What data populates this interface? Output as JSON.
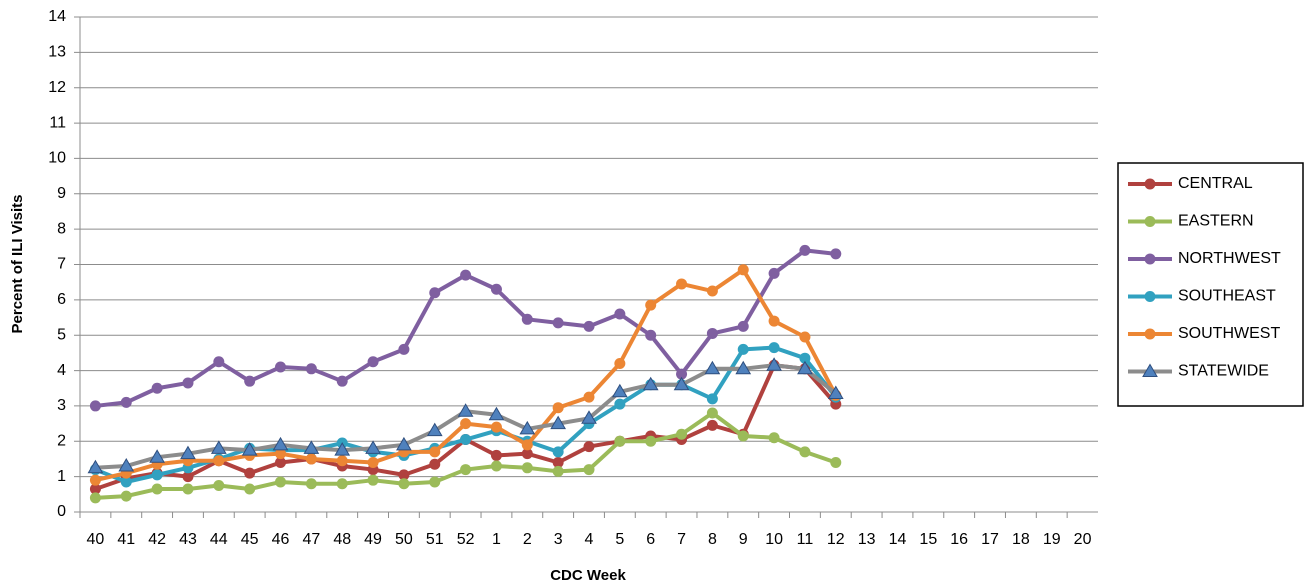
{
  "chart_data": {
    "type": "line",
    "x_label": "CDC Week",
    "y_label": "Percent of ILI Visits",
    "categories": [
      "40",
      "41",
      "42",
      "43",
      "44",
      "45",
      "46",
      "47",
      "48",
      "49",
      "50",
      "51",
      "52",
      "1",
      "2",
      "3",
      "4",
      "5",
      "6",
      "7",
      "8",
      "9",
      "10",
      "11",
      "12",
      "13",
      "14",
      "15",
      "16",
      "17",
      "18",
      "19",
      "20"
    ],
    "series": [
      {
        "name": "CENTRAL",
        "color": "#b0413e",
        "marker": "circle",
        "values": [
          0.65,
          0.95,
          1.1,
          1.0,
          1.45,
          1.1,
          1.4,
          1.5,
          1.3,
          1.2,
          1.05,
          1.35,
          2.05,
          1.6,
          1.65,
          1.4,
          1.85,
          2.0,
          2.15,
          2.05,
          2.45,
          2.2,
          4.15,
          4.05,
          3.05,
          null,
          null,
          null,
          null,
          null,
          null,
          null,
          null
        ]
      },
      {
        "name": "EASTERN",
        "color": "#9bbb59",
        "marker": "circle",
        "values": [
          0.4,
          0.45,
          0.65,
          0.65,
          0.75,
          0.65,
          0.85,
          0.8,
          0.8,
          0.9,
          0.8,
          0.85,
          1.2,
          1.3,
          1.25,
          1.15,
          1.2,
          2.0,
          2.0,
          2.2,
          2.8,
          2.15,
          2.1,
          1.7,
          1.4,
          null,
          null,
          null,
          null,
          null,
          null,
          null,
          null
        ]
      },
      {
        "name": "NORTHWEST",
        "color": "#7f5fa0",
        "marker": "circle",
        "values": [
          3.0,
          3.1,
          3.5,
          3.65,
          4.25,
          3.7,
          4.1,
          4.05,
          3.7,
          4.25,
          4.6,
          6.2,
          6.7,
          6.3,
          5.45,
          5.35,
          5.25,
          5.6,
          5.0,
          3.9,
          5.05,
          5.25,
          6.75,
          7.4,
          7.3,
          null,
          null,
          null,
          null,
          null,
          null,
          null,
          null
        ]
      },
      {
        "name": "SOUTHEAST",
        "color": "#31a1c0",
        "marker": "circle",
        "values": [
          1.2,
          0.85,
          1.05,
          1.25,
          1.5,
          1.8,
          1.75,
          1.75,
          1.95,
          1.7,
          1.6,
          1.8,
          2.05,
          2.3,
          2.0,
          1.7,
          2.5,
          3.05,
          3.6,
          3.6,
          3.2,
          4.6,
          4.65,
          4.35,
          3.25,
          null,
          null,
          null,
          null,
          null,
          null,
          null,
          null
        ]
      },
      {
        "name": "SOUTHWEST",
        "color": "#ec8634",
        "marker": "circle",
        "values": [
          0.9,
          1.1,
          1.35,
          1.45,
          1.45,
          1.6,
          1.65,
          1.5,
          1.45,
          1.4,
          1.7,
          1.7,
          2.5,
          2.4,
          1.9,
          2.95,
          3.25,
          4.2,
          5.85,
          6.45,
          6.25,
          6.85,
          5.4,
          4.95,
          3.3,
          null,
          null,
          null,
          null,
          null,
          null,
          null,
          null
        ]
      },
      {
        "name": "STATEWIDE",
        "color": "#8c8c8c",
        "marker": "triangle",
        "marker_color": "#4f81bd",
        "values": [
          1.25,
          1.3,
          1.55,
          1.65,
          1.8,
          1.75,
          1.9,
          1.8,
          1.75,
          1.8,
          1.9,
          2.3,
          2.85,
          2.75,
          2.35,
          2.5,
          2.65,
          3.4,
          3.6,
          3.6,
          4.05,
          4.05,
          4.15,
          4.05,
          3.35,
          null,
          null,
          null,
          null,
          null,
          null,
          null,
          null
        ]
      }
    ],
    "ylim": [
      0,
      14
    ],
    "yticks": [
      0,
      1,
      2,
      3,
      4,
      5,
      6,
      7,
      8,
      9,
      10,
      11,
      12,
      13,
      14
    ],
    "grid": true,
    "legend": "right"
  }
}
